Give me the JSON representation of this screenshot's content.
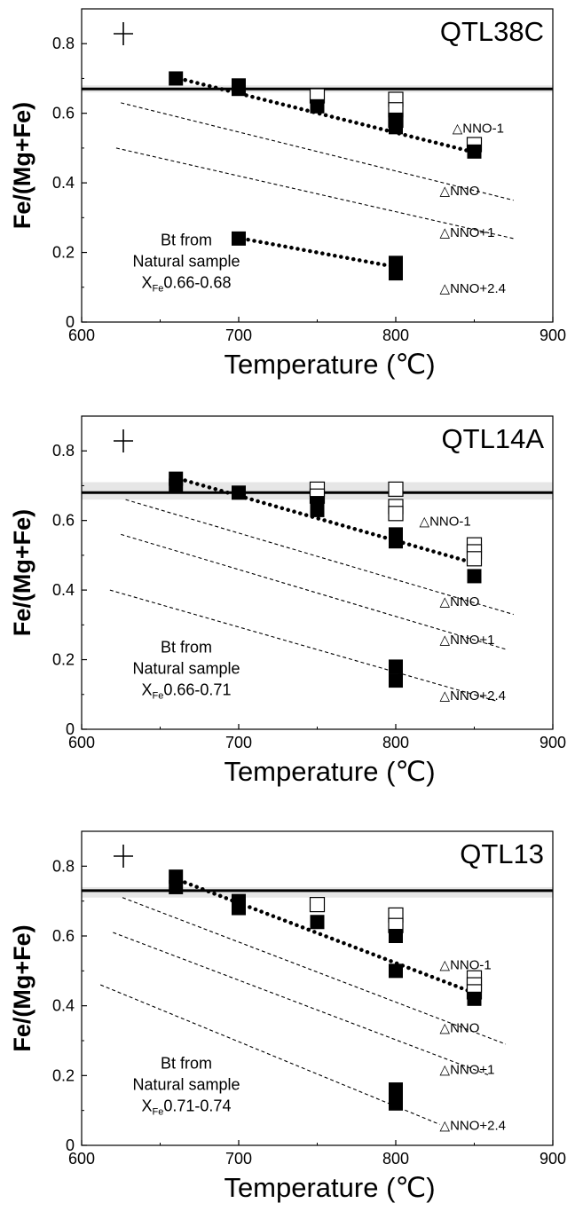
{
  "chart_data": [
    {
      "type": "scatter",
      "title": "QTL38C",
      "xlabel": "Temperature (℃)",
      "ylabel": "Fe/(Mg+Fe)",
      "xlim": [
        600,
        900
      ],
      "ylim": [
        0,
        0.9
      ],
      "x_ticks": [
        "600",
        "700",
        "800",
        "900"
      ],
      "y_ticks": [
        "0",
        "0.2",
        "0.4",
        "0.6",
        "0.8"
      ],
      "natural_sample": {
        "line1": "Bt from",
        "line2": "Natural sample",
        "x_label": "X",
        "x_sub": "Fe",
        "range": "0.66-0.68",
        "value": 0.67,
        "band": [
          0.66,
          0.68
        ]
      },
      "filled_squares": [
        [
          660,
          0.7
        ],
        [
          700,
          0.68
        ],
        [
          700,
          0.67
        ],
        [
          750,
          0.62
        ],
        [
          800,
          0.58
        ],
        [
          800,
          0.56
        ],
        [
          850,
          0.49
        ],
        [
          700,
          0.24
        ],
        [
          800,
          0.17
        ],
        [
          800,
          0.14
        ]
      ],
      "open_squares": [
        [
          750,
          0.65
        ],
        [
          800,
          0.64
        ],
        [
          800,
          0.61
        ],
        [
          800,
          0.58
        ],
        [
          850,
          0.51
        ]
      ],
      "trend_lines": [
        {
          "from": [
            662,
            0.7
          ],
          "to": [
            848,
            0.49
          ]
        },
        {
          "from": [
            702,
            0.24
          ],
          "to": [
            798,
            0.16
          ]
        }
      ],
      "buffers": [
        {
          "label": "△NNO-1",
          "from": [
            625,
            0.63
          ],
          "to": [
            875,
            0.43
          ],
          "label_pos": [
            836,
            0.56
          ],
          "draw_line": false
        },
        {
          "label": "△NNO",
          "from": [
            625,
            0.63
          ],
          "to": [
            875,
            0.35
          ],
          "label_pos": [
            828,
            0.38
          ],
          "draw_line": true
        },
        {
          "label": "△NNO+1",
          "from": [
            622,
            0.5
          ],
          "to": [
            875,
            0.24
          ],
          "label_pos": [
            828,
            0.26
          ],
          "draw_line": true
        },
        {
          "label": "△NNO+2.4",
          "from": null,
          "to": null,
          "label_pos": [
            828,
            0.1
          ],
          "draw_line": false
        }
      ]
    },
    {
      "type": "scatter",
      "title": "QTL14A",
      "xlabel": "Temperature (℃)",
      "ylabel": "Fe/(Mg+Fe)",
      "xlim": [
        600,
        900
      ],
      "ylim": [
        0,
        0.9
      ],
      "x_ticks": [
        "600",
        "700",
        "800",
        "900"
      ],
      "y_ticks": [
        "0",
        "0.2",
        "0.4",
        "0.6",
        "0.8"
      ],
      "natural_sample": {
        "line1": "Bt from",
        "line2": "Natural sample",
        "x_label": "X",
        "x_sub": "Fe",
        "range": "0.66-0.71",
        "value": 0.68,
        "band": [
          0.66,
          0.71
        ]
      },
      "filled_squares": [
        [
          660,
          0.72
        ],
        [
          660,
          0.7
        ],
        [
          700,
          0.68
        ],
        [
          750,
          0.65
        ],
        [
          750,
          0.63
        ],
        [
          800,
          0.56
        ],
        [
          800,
          0.54
        ],
        [
          850,
          0.44
        ],
        [
          800,
          0.18
        ],
        [
          800,
          0.14
        ]
      ],
      "open_squares": [
        [
          750,
          0.69
        ],
        [
          750,
          0.67
        ],
        [
          800,
          0.69
        ],
        [
          800,
          0.64
        ],
        [
          800,
          0.62
        ],
        [
          850,
          0.53
        ],
        [
          850,
          0.51
        ],
        [
          850,
          0.49
        ]
      ],
      "trend_lines": [
        {
          "from": [
            662,
            0.72
          ],
          "to": [
            848,
            0.48
          ]
        }
      ],
      "buffers": [
        {
          "label": "△NNO-1",
          "from": null,
          "to": null,
          "label_pos": [
            815,
            0.6
          ],
          "draw_line": false
        },
        {
          "label": "△NNO",
          "from": [
            628,
            0.66
          ],
          "to": [
            875,
            0.33
          ],
          "label_pos": [
            828,
            0.37
          ],
          "draw_line": true
        },
        {
          "label": "△NNO+1",
          "from": [
            625,
            0.56
          ],
          "to": [
            870,
            0.23
          ],
          "label_pos": [
            828,
            0.26
          ],
          "draw_line": true
        },
        {
          "label": "△NNO+2.4",
          "from": [
            618,
            0.4
          ],
          "to": [
            865,
            0.08
          ],
          "label_pos": [
            828,
            0.1
          ],
          "draw_line": true
        }
      ]
    },
    {
      "type": "scatter",
      "title": "QTL13",
      "xlabel": "Temperature (℃)",
      "ylabel": "Fe/(Mg+Fe)",
      "xlim": [
        600,
        900
      ],
      "ylim": [
        0,
        0.9
      ],
      "x_ticks": [
        "600",
        "700",
        "800",
        "900"
      ],
      "y_ticks": [
        "0",
        "0.2",
        "0.4",
        "0.6",
        "0.8"
      ],
      "natural_sample": {
        "line1": "Bt from",
        "line2": "Natural sample",
        "x_label": "X",
        "x_sub": "Fe",
        "range": "0.71-0.74",
        "value": 0.73,
        "band": [
          0.71,
          0.74
        ]
      },
      "filled_squares": [
        [
          660,
          0.77
        ],
        [
          660,
          0.74
        ],
        [
          700,
          0.7
        ],
        [
          700,
          0.68
        ],
        [
          750,
          0.64
        ],
        [
          800,
          0.6
        ],
        [
          800,
          0.5
        ],
        [
          850,
          0.42
        ],
        [
          800,
          0.16
        ],
        [
          800,
          0.12
        ]
      ],
      "open_squares": [
        [
          750,
          0.69
        ],
        [
          800,
          0.66
        ],
        [
          800,
          0.63
        ],
        [
          850,
          0.48
        ],
        [
          850,
          0.46
        ],
        [
          850,
          0.44
        ]
      ],
      "trend_lines": [
        {
          "from": [
            662,
            0.76
          ],
          "to": [
            848,
            0.44
          ]
        }
      ],
      "buffers": [
        {
          "label": "△NNO-1",
          "from": null,
          "to": null,
          "label_pos": [
            828,
            0.52
          ],
          "draw_line": false
        },
        {
          "label": "△NNO",
          "from": [
            626,
            0.71
          ],
          "to": [
            870,
            0.29
          ],
          "label_pos": [
            828,
            0.34
          ],
          "draw_line": true
        },
        {
          "label": "△NNO+1",
          "from": [
            620,
            0.61
          ],
          "to": [
            860,
            0.2
          ],
          "label_pos": [
            828,
            0.22
          ],
          "draw_line": true
        },
        {
          "label": "△NNO+2.4",
          "from": [
            612,
            0.46
          ],
          "to": [
            828,
            0.06
          ],
          "label_pos": [
            828,
            0.06
          ],
          "draw_line": true
        }
      ]
    }
  ],
  "colors": {
    "axis": "#000000",
    "band": "#e6e6e6",
    "filled": "#000000",
    "open_fill": "#ffffff"
  },
  "crosshair_icon": "plus-sign"
}
